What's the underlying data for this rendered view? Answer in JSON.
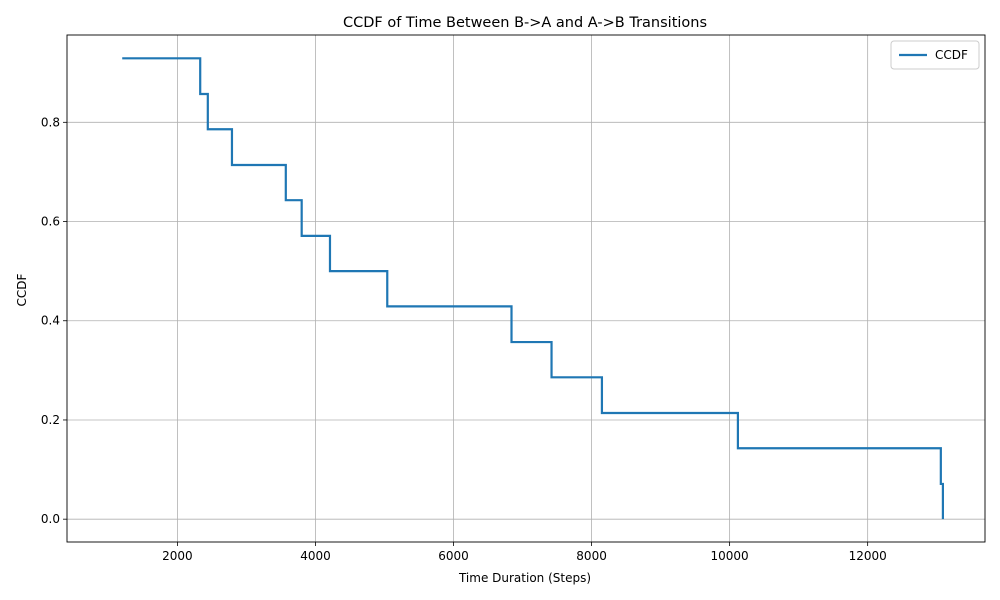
{
  "chart_data": {
    "type": "line",
    "title": "CCDF of Time Between B->A and A->B Transitions",
    "xlabel": "Time Duration (Steps)",
    "ylabel": "CCDF",
    "xlim": [
      400,
      13700
    ],
    "ylim": [
      -0.046,
      0.976
    ],
    "x_ticks": [
      2000,
      4000,
      6000,
      8000,
      10000,
      12000
    ],
    "x_tick_labels": [
      "2000",
      "4000",
      "6000",
      "8000",
      "10000",
      "12000"
    ],
    "y_ticks": [
      0.0,
      0.2,
      0.4,
      0.6,
      0.8
    ],
    "y_tick_labels": [
      "0.0",
      "0.2",
      "0.4",
      "0.6",
      "0.8"
    ],
    "grid": true,
    "legend": "top-right",
    "line_color": "#1f77b4",
    "series": [
      {
        "name": "CCDF",
        "step": "post",
        "x": [
          1200,
          2330,
          2440,
          2790,
          3570,
          3800,
          4210,
          5040,
          6840,
          7420,
          8150,
          10120,
          13060,
          13090
        ],
        "y": [
          0.929,
          0.857,
          0.786,
          0.714,
          0.643,
          0.571,
          0.5,
          0.429,
          0.357,
          0.286,
          0.214,
          0.143,
          0.071,
          0.0
        ]
      }
    ]
  }
}
